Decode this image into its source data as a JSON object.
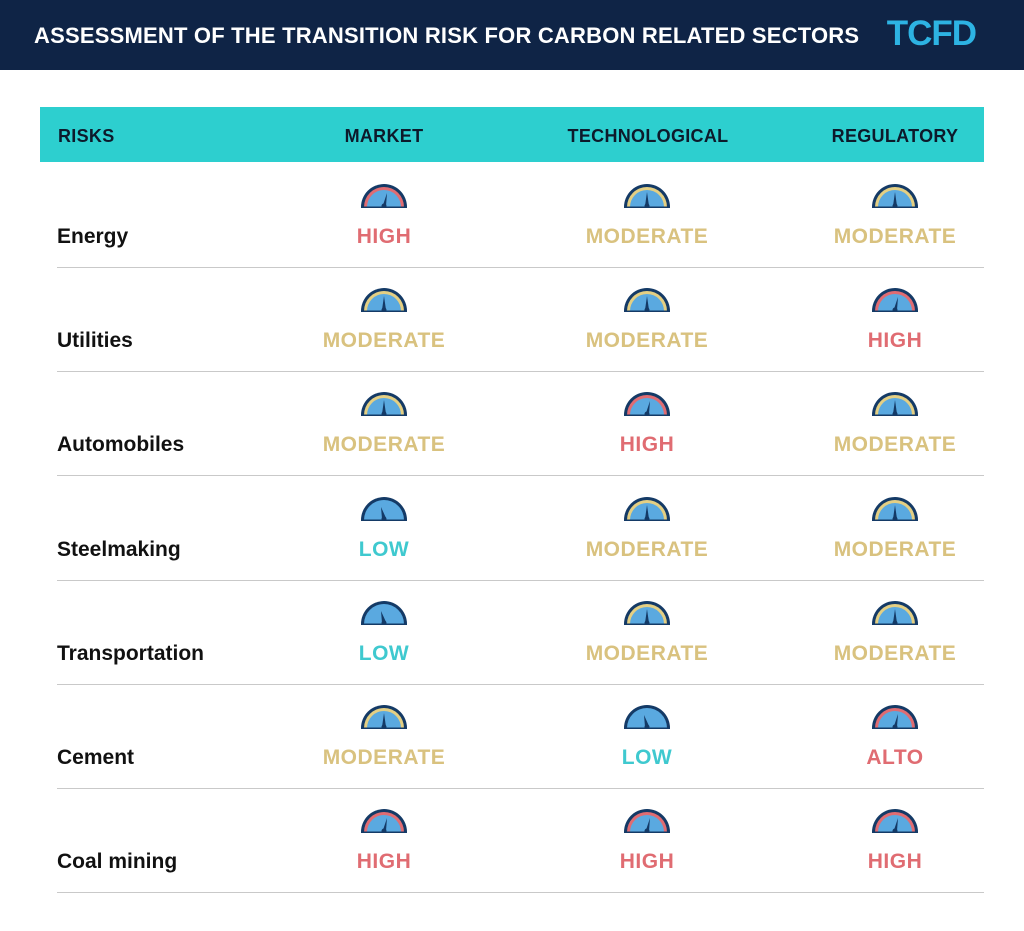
{
  "header": {
    "title": "ASSESSMENT OF THE TRANSITION RISK FOR CARBON RELATED SECTORS",
    "logo": "TCFD"
  },
  "columns": [
    "RISKS",
    "MARKET",
    "TECHNOLOGICAL",
    "REGULATORY"
  ],
  "levels": {
    "HIGH": {
      "color": "#e06c72",
      "gauge": "high"
    },
    "ALTO": {
      "color": "#e06c72",
      "gauge": "high"
    },
    "MODERATE": {
      "color": "#d9c27f",
      "gauge": "moderate"
    },
    "LOW": {
      "color": "#3fc9cf",
      "gauge": "low"
    }
  },
  "rows": [
    {
      "label": "Energy",
      "market": "HIGH",
      "technological": "MODERATE",
      "regulatory": "MODERATE"
    },
    {
      "label": "Utilities",
      "market": "MODERATE",
      "technological": "MODERATE",
      "regulatory": "HIGH"
    },
    {
      "label": "Automobiles",
      "market": "MODERATE",
      "technological": "HIGH",
      "regulatory": "MODERATE"
    },
    {
      "label": "Steelmaking",
      "market": "LOW",
      "technological": "MODERATE",
      "regulatory": "MODERATE"
    },
    {
      "label": "Transportation",
      "market": "LOW",
      "technological": "MODERATE",
      "regulatory": "MODERATE"
    },
    {
      "label": "Cement",
      "market": "MODERATE",
      "technological": "LOW",
      "regulatory": "ALTO"
    },
    {
      "label": "Coal mining",
      "market": "HIGH",
      "technological": "HIGH",
      "regulatory": "HIGH"
    }
  ]
}
